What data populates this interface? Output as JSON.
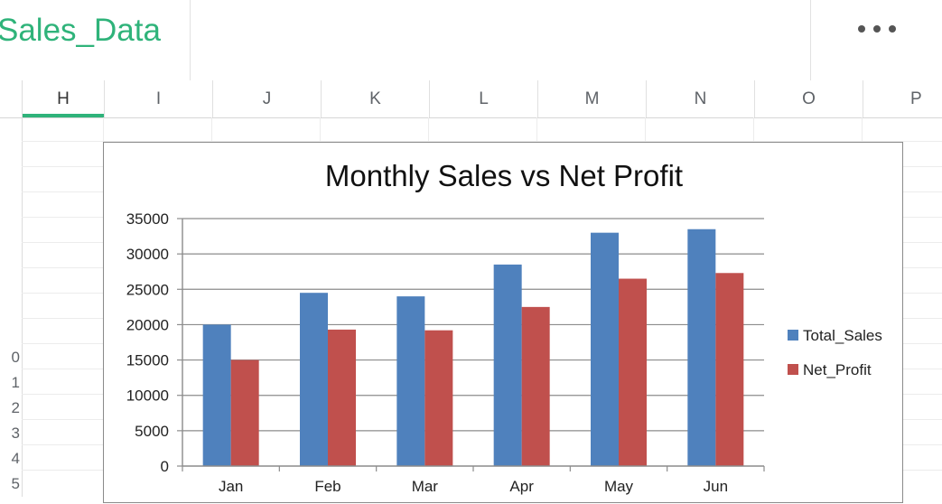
{
  "sheet": {
    "title": "Sales_Data"
  },
  "header": {
    "more_icon": "more-horizontal-icon"
  },
  "columns": [
    "H",
    "I",
    "J",
    "K",
    "L",
    "M",
    "N",
    "O",
    "P"
  ],
  "selected_column": "H",
  "row_numbers": [
    "0",
    "1",
    "2",
    "3",
    "4",
    "5"
  ],
  "colors": {
    "accent": "#2fb37a",
    "total_sales": "#4f81bd",
    "net_profit": "#c0504d"
  },
  "chart_data": {
    "type": "bar",
    "title": "Monthly Sales vs Net Profit",
    "categories": [
      "Jan",
      "Feb",
      "Mar",
      "Apr",
      "May",
      "Jun"
    ],
    "series": [
      {
        "name": "Total_Sales",
        "values": [
          20000,
          24500,
          24000,
          28500,
          33000,
          33500
        ]
      },
      {
        "name": "Net_Profit",
        "values": [
          15000,
          19300,
          19200,
          22500,
          26500,
          27300
        ]
      }
    ],
    "ylim": [
      0,
      35000
    ],
    "yticks": [
      "35000",
      "30000",
      "25000",
      "20000",
      "15000",
      "10000",
      "5000",
      "0"
    ],
    "grid": true,
    "legend": "right"
  }
}
